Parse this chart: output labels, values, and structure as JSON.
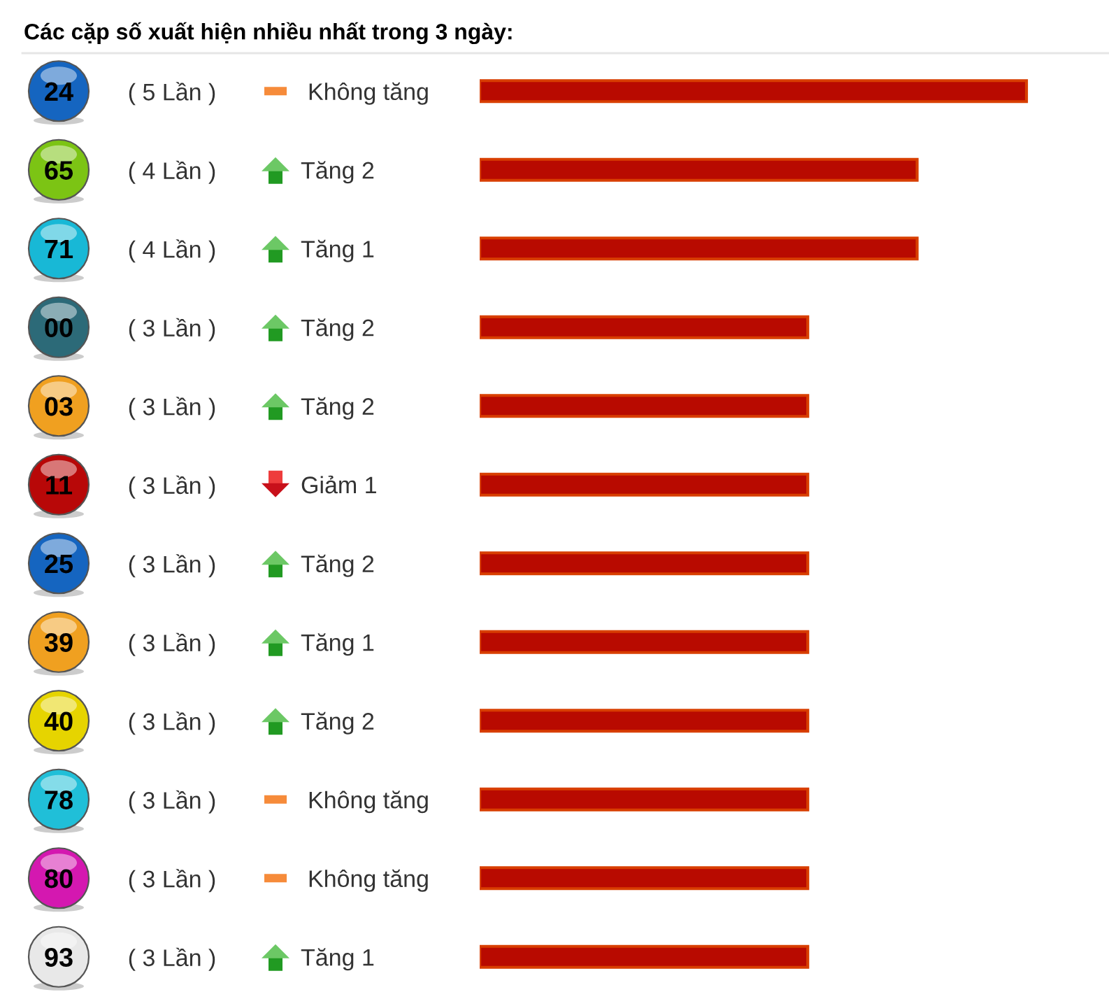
{
  "chart_data": {
    "type": "bar",
    "orientation": "horizontal",
    "title": "Các cặp số xuất hiện nhiều nhất trong 3 ngày:",
    "categories": [
      "24",
      "65",
      "71",
      "00",
      "03",
      "11",
      "25",
      "39",
      "40",
      "78",
      "80",
      "93"
    ],
    "values": [
      5,
      4,
      4,
      3,
      3,
      3,
      3,
      3,
      3,
      3,
      3,
      3
    ],
    "value_labels": [
      "( 5 Lần )",
      "( 4 Lần )",
      "( 4 Lần )",
      "( 3 Lần )",
      "( 3 Lần )",
      "( 3 Lần )",
      "( 3 Lần )",
      "( 3 Lần )",
      "( 3 Lần )",
      "( 3 Lần )",
      "( 3 Lần )",
      "( 3 Lần )"
    ],
    "color": "#b80a00",
    "annotations": [
      "Không tăng",
      "Tăng 2",
      "Tăng 1",
      "Tăng 2",
      "Tăng 2",
      "Giảm 1",
      "Tăng 2",
      "Tăng 1",
      "Tăng 2",
      "Không tăng",
      "Không tăng",
      "Tăng 1"
    ]
  }
}
